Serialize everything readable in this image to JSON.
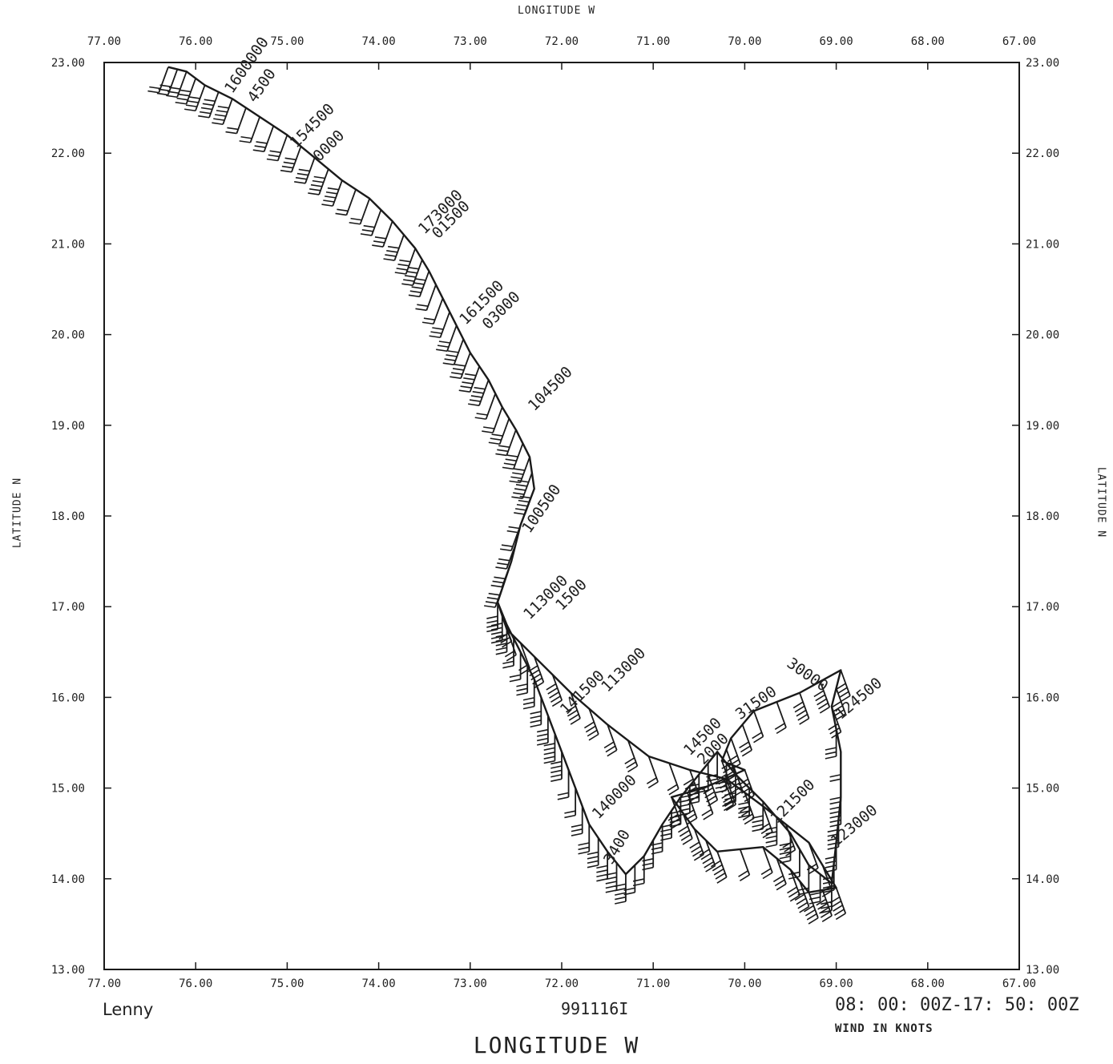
{
  "titles": {
    "top_axis": "LONGITUDE  W",
    "bottom_axis": "LONGITUDE  W",
    "left_axis": "LATITUDE  N",
    "right_axis": "LATITUDE  N"
  },
  "footer": {
    "storm_name": "Lenny",
    "mission_id": "991116I",
    "time_range": "08: 00: 00Z-17: 50: 00Z",
    "wind_units": "WIND IN KNOTS"
  },
  "axes": {
    "lon_range": [
      77,
      67
    ],
    "lat_range": [
      13,
      23
    ],
    "lon_ticks": [
      "77.00",
      "76.00",
      "75.00",
      "74.00",
      "73.00",
      "72.00",
      "71.00",
      "70.00",
      "69.00",
      "68.00",
      "67.00"
    ],
    "lat_ticks": [
      "13.00",
      "14.00",
      "15.00",
      "16.00",
      "17.00",
      "18.00",
      "19.00",
      "20.00",
      "21.00",
      "22.00",
      "23.00"
    ]
  },
  "colors": {
    "track": "#1a1a1a",
    "frame": "#1a1a1a"
  },
  "chart_data": {
    "type": "map-track",
    "flight_track": [
      [
        76.3,
        22.95
      ],
      [
        76.1,
        22.9
      ],
      [
        75.9,
        22.75
      ],
      [
        75.6,
        22.6
      ],
      [
        75.3,
        22.4
      ],
      [
        75.0,
        22.2
      ],
      [
        74.7,
        21.95
      ],
      [
        74.4,
        21.7
      ],
      [
        74.1,
        21.5
      ],
      [
        73.85,
        21.25
      ],
      [
        73.6,
        20.95
      ],
      [
        73.45,
        20.7
      ],
      [
        73.3,
        20.4
      ],
      [
        73.15,
        20.1
      ],
      [
        73.0,
        19.8
      ],
      [
        72.8,
        19.5
      ],
      [
        72.65,
        19.2
      ],
      [
        72.5,
        18.95
      ],
      [
        72.35,
        18.65
      ],
      [
        72.3,
        18.3
      ],
      [
        72.45,
        17.9
      ],
      [
        72.55,
        17.5
      ],
      [
        72.7,
        17.05
      ],
      [
        72.6,
        16.8
      ],
      [
        72.45,
        16.5
      ],
      [
        72.3,
        16.2
      ],
      [
        72.15,
        15.8
      ],
      [
        72.0,
        15.4
      ],
      [
        71.85,
        15.0
      ],
      [
        71.7,
        14.6
      ],
      [
        71.5,
        14.3
      ],
      [
        71.3,
        14.05
      ],
      [
        71.1,
        14.25
      ],
      [
        70.9,
        14.6
      ],
      [
        70.7,
        14.9
      ],
      [
        70.5,
        15.15
      ],
      [
        70.3,
        15.4
      ],
      [
        70.1,
        15.15
      ],
      [
        69.8,
        14.85
      ],
      [
        69.5,
        14.5
      ],
      [
        69.3,
        14.15
      ],
      [
        69.05,
        13.95
      ],
      [
        69.0,
        14.4
      ],
      [
        68.95,
        14.9
      ],
      [
        68.95,
        15.4
      ],
      [
        69.05,
        15.9
      ],
      [
        68.95,
        16.3
      ],
      [
        69.4,
        16.05
      ],
      [
        69.9,
        15.85
      ],
      [
        70.15,
        15.55
      ],
      [
        70.25,
        15.3
      ],
      [
        70.0,
        15.2
      ],
      [
        70.45,
        15.0
      ],
      [
        70.8,
        14.9
      ],
      [
        70.55,
        14.55
      ],
      [
        70.3,
        14.3
      ],
      [
        69.8,
        14.35
      ],
      [
        69.5,
        14.1
      ],
      [
        69.3,
        13.85
      ],
      [
        69.0,
        13.9
      ],
      [
        69.3,
        14.4
      ],
      [
        69.8,
        14.8
      ],
      [
        70.2,
        15.1
      ],
      [
        70.6,
        15.2
      ],
      [
        71.05,
        15.35
      ],
      [
        71.5,
        15.7
      ],
      [
        71.9,
        16.05
      ],
      [
        72.3,
        16.45
      ],
      [
        72.6,
        16.75
      ],
      [
        72.7,
        17.05
      ]
    ],
    "altitude_labels": [
      {
        "text": "1600000",
        "lon": 75.6,
        "lat": 22.65,
        "angle": -55
      },
      {
        "text": "4500",
        "lon": 75.35,
        "lat": 22.55,
        "angle": -55
      },
      {
        "text": "154500",
        "lon": 74.9,
        "lat": 22.05,
        "angle": -45
      },
      {
        "text": "0000",
        "lon": 74.65,
        "lat": 21.9,
        "angle": -45
      },
      {
        "text": "173000",
        "lon": 73.5,
        "lat": 21.1,
        "angle": -45
      },
      {
        "text": "01500",
        "lon": 73.35,
        "lat": 21.05,
        "angle": -45
      },
      {
        "text": "161500",
        "lon": 73.05,
        "lat": 20.1,
        "angle": -45
      },
      {
        "text": "03000",
        "lon": 72.8,
        "lat": 20.05,
        "angle": -45
      },
      {
        "text": "104500",
        "lon": 72.3,
        "lat": 19.15,
        "angle": -45
      },
      {
        "text": "100500",
        "lon": 72.35,
        "lat": 17.8,
        "angle": -55
      },
      {
        "text": "113000",
        "lon": 72.35,
        "lat": 16.85,
        "angle": -45
      },
      {
        "text": "1500",
        "lon": 72.0,
        "lat": 16.95,
        "angle": -45
      },
      {
        "text": "113000",
        "lon": 71.5,
        "lat": 16.05,
        "angle": -45
      },
      {
        "text": "141500",
        "lon": 71.95,
        "lat": 15.8,
        "angle": -45
      },
      {
        "text": "140000",
        "lon": 71.6,
        "lat": 14.65,
        "angle": -45
      },
      {
        "text": "3400",
        "lon": 71.45,
        "lat": 14.15,
        "angle": -60
      },
      {
        "text": "14500",
        "lon": 70.6,
        "lat": 15.35,
        "angle": -45
      },
      {
        "text": "2000",
        "lon": 70.45,
        "lat": 15.25,
        "angle": -45
      },
      {
        "text": "31500",
        "lon": 70.05,
        "lat": 15.75,
        "angle": -35
      },
      {
        "text": "30000",
        "lon": 69.55,
        "lat": 16.35,
        "angle": 35
      },
      {
        "text": "124500",
        "lon": 68.95,
        "lat": 15.75,
        "angle": -40
      },
      {
        "text": "121500",
        "lon": 69.65,
        "lat": 14.6,
        "angle": -45
      },
      {
        "text": "123000",
        "lon": 69.0,
        "lat": 14.35,
        "angle": -40
      }
    ]
  }
}
